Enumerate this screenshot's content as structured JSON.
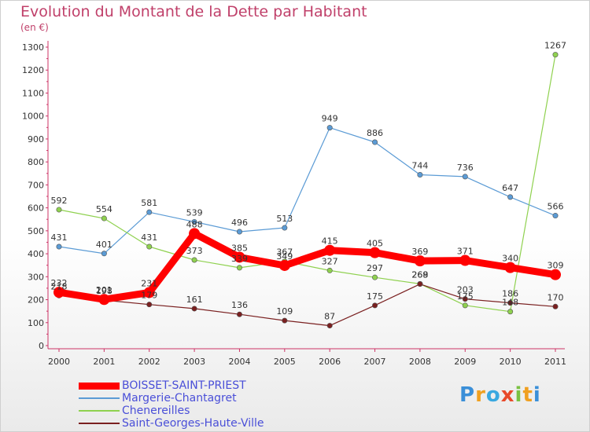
{
  "title": "Evolution du Montant de la Dette par Habitant",
  "subtitle": "(en €)",
  "logo": "Proxiti",
  "chart_data": {
    "type": "line",
    "title": "Evolution du Montant de la Dette par Habitant",
    "subtitle": "(en €)",
    "x": [
      "2000",
      "2001",
      "2002",
      "2003",
      "2004",
      "2005",
      "2006",
      "2007",
      "2008",
      "2009",
      "2010",
      "2011"
    ],
    "ylim": [
      0,
      1300
    ],
    "yticks": [
      "0",
      "100",
      "200",
      "300",
      "400",
      "500",
      "600",
      "700",
      "800",
      "900",
      "1000",
      "1100",
      "1200",
      "1300"
    ],
    "grid": false,
    "legend_position": "bottom-left",
    "series": [
      {
        "name": "BOISSET-SAINT-PRIEST",
        "color": "#ff0000",
        "values": [
          232,
          201,
          231,
          488,
          385,
          349,
          415,
          405,
          369,
          371,
          340,
          309
        ]
      },
      {
        "name": "Margerie-Chantagret",
        "color": "#5b9bd5",
        "values": [
          431,
          401,
          581,
          539,
          496,
          513,
          949,
          886,
          744,
          736,
          647,
          566
        ]
      },
      {
        "name": "Chenereilles",
        "color": "#8fd14f",
        "values": [
          592,
          554,
          431,
          373,
          339,
          367,
          327,
          297,
          269,
          175,
          148,
          1267
        ]
      },
      {
        "name": "Saint-Georges-Haute-Ville",
        "color": "#7a2020",
        "values": [
          218,
          198,
          179,
          161,
          136,
          109,
          87,
          175,
          268,
          203,
          186,
          170
        ]
      }
    ]
  }
}
